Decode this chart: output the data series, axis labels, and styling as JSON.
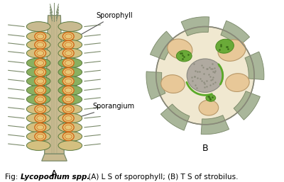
{
  "bg_color": "#ffffff",
  "fig_width": 4.0,
  "fig_height": 2.57,
  "dpi": 100,
  "stem_color": "#c8ba90",
  "stem_outline": "#7a8a6a",
  "sporophyll_fill": "#8ab060",
  "sporophyll_ec": "#5a7a40",
  "sporangium_fill": "#e8c878",
  "sporangium_ec": "#d06818",
  "spine_color": "#7a8a6a",
  "cross_center_fill": "#a8a898",
  "cross_center_ec": "#888878",
  "lobe_fill": "#e8c898",
  "lobe_ec": "#b89868",
  "green_fill": "#6aaa38",
  "green_ec": "#4a8a20",
  "outer_circle_fill": "#f0e8d0",
  "outer_circle_ec": "#888878",
  "label_A": "A",
  "label_B": "B",
  "label_sporophyll": "Sporophyll",
  "label_sporangium": "Sporangium",
  "caption_normal": "Fig: ",
  "caption_italic": "Lycopodium spp.",
  "caption_rest": " (A) L S of sporophyll; (B) T S of strobilus."
}
